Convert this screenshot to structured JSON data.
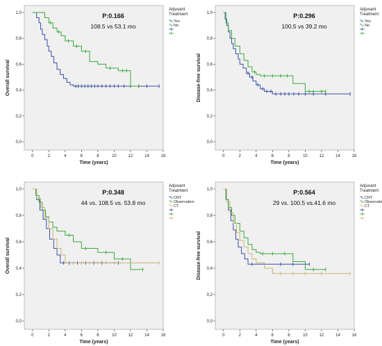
{
  "colors": {
    "blue": "#3a4fa8",
    "green": "#3aa83a",
    "tan": "#c8b47a",
    "background": "#f0f0f0"
  },
  "chart_data": [
    {
      "type": "line",
      "xlabel": "Time (years)",
      "ylabel": "Overall survival",
      "pvalue": "P:0.166",
      "subtitle": "108.5 vs 53.1 mo",
      "legend_title": [
        "Adjuvant",
        "Treatment"
      ],
      "legend_placement": "right",
      "xlim": [
        -1,
        16
      ],
      "ylim": [
        0,
        1.0
      ],
      "xticks": [
        "0",
        "2",
        "4",
        "6",
        "8",
        "10",
        "12",
        "14",
        "16"
      ],
      "yticks": [
        "0,0",
        "0,2",
        "0,4",
        "0,6",
        "0,8",
        "1,0"
      ],
      "series": [
        {
          "name": "Yes",
          "color": "blue",
          "x": [
            0,
            0.5,
            0.8,
            1.0,
            1.2,
            1.5,
            1.8,
            2.0,
            2.3,
            2.6,
            3.0,
            3.4,
            3.8,
            4.2,
            4.6,
            5.0,
            15.5
          ],
          "y": [
            1.0,
            0.96,
            0.92,
            0.87,
            0.83,
            0.79,
            0.74,
            0.7,
            0.66,
            0.61,
            0.56,
            0.52,
            0.49,
            0.46,
            0.44,
            0.43,
            0.43
          ],
          "censors": [
            5.3,
            5.6,
            6.0,
            6.4,
            6.8,
            7.2,
            7.6,
            8.0,
            8.5,
            9.0,
            9.5,
            10.0,
            10.5,
            11.2,
            12.0,
            13.0,
            14.0,
            15.5
          ]
        },
        {
          "name": "No",
          "color": "green",
          "x": [
            0,
            1.5,
            2.0,
            2.5,
            3.0,
            3.5,
            4.0,
            5.0,
            6.0,
            7.0,
            8.0,
            9.0,
            10.5,
            12.0,
            13.0
          ],
          "y": [
            1.0,
            0.96,
            0.92,
            0.88,
            0.85,
            0.82,
            0.78,
            0.74,
            0.7,
            0.62,
            0.6,
            0.57,
            0.55,
            0.43,
            0.43
          ],
          "censors": [
            2.2,
            3.2,
            4.4,
            5.4,
            6.5,
            9.5,
            11.0,
            11.5,
            13.0
          ]
        }
      ]
    },
    {
      "type": "line",
      "xlabel": "Time (years)",
      "ylabel": "Disease-free survival",
      "pvalue": "P:0.296",
      "subtitle": "100.5 vs 39.2 mo",
      "legend_title": [
        "Adjuvant",
        "Treatment"
      ],
      "legend_placement": "right",
      "xlim": [
        -1,
        16
      ],
      "ylim": [
        0,
        1.0
      ],
      "xticks": [
        "0",
        "2",
        "4",
        "6",
        "8",
        "10",
        "12",
        "14",
        "16"
      ],
      "yticks": [
        "0,0",
        "0,2",
        "0,4",
        "0,6",
        "0,8",
        "1,0"
      ],
      "series": [
        {
          "name": "Yes",
          "color": "blue",
          "x": [
            0,
            0.2,
            0.4,
            0.6,
            0.8,
            1.0,
            1.2,
            1.5,
            1.8,
            2.0,
            2.4,
            2.8,
            3.2,
            3.6,
            4.0,
            4.5,
            5.0,
            6.0,
            15.5
          ],
          "y": [
            1.0,
            0.95,
            0.9,
            0.85,
            0.8,
            0.76,
            0.72,
            0.68,
            0.64,
            0.6,
            0.57,
            0.53,
            0.5,
            0.47,
            0.44,
            0.41,
            0.39,
            0.37,
            0.37
          ],
          "censors": [
            3.0,
            3.5,
            4.2,
            4.8,
            5.3,
            5.8,
            6.4,
            7.0,
            7.5,
            8.0,
            8.6,
            9.2,
            10.0,
            11.0,
            12.5,
            15.5
          ]
        },
        {
          "name": "No",
          "color": "green",
          "x": [
            0,
            0.3,
            0.6,
            1.0,
            1.4,
            2.0,
            2.5,
            3.0,
            3.5,
            4.0,
            4.5,
            8.5,
            10.0,
            12.5
          ],
          "y": [
            1.0,
            0.92,
            0.86,
            0.8,
            0.74,
            0.68,
            0.63,
            0.58,
            0.54,
            0.52,
            0.51,
            0.45,
            0.39,
            0.39
          ],
          "censors": [
            3.8,
            5.0,
            6.0,
            7.0,
            7.8,
            10.5,
            11.0,
            12.0,
            12.5
          ]
        }
      ]
    },
    {
      "type": "line",
      "xlabel": "Time (years)",
      "ylabel": "Overall survival",
      "pvalue": "P:0.348",
      "subtitle": "44 vs. 108.5 vs. 53.8 mo",
      "legend_title": [
        "Adjuvant",
        "Treatment"
      ],
      "legend_placement": "right",
      "xlim": [
        -1,
        16
      ],
      "ylim": [
        0,
        1.0
      ],
      "xticks": [
        "0",
        "2",
        "4",
        "6",
        "8",
        "10",
        "12",
        "14",
        "16"
      ],
      "yticks": [
        "0,0",
        "0,2",
        "0,4",
        "0,6",
        "0,8",
        "1,0"
      ],
      "series": [
        {
          "name": "CRT",
          "color": "blue",
          "x": [
            0,
            0.5,
            0.9,
            1.3,
            1.7,
            2.1,
            2.6,
            3.0,
            3.4,
            10.5
          ],
          "y": [
            1.0,
            0.92,
            0.84,
            0.77,
            0.7,
            0.62,
            0.55,
            0.5,
            0.44,
            0.44
          ],
          "censors": [
            3.8,
            4.5,
            5.5,
            6.5,
            7.5,
            8.5,
            10.5
          ]
        },
        {
          "name": "Observation",
          "color": "green",
          "x": [
            0,
            0.4,
            0.8,
            1.2,
            1.6,
            2.0,
            2.5,
            3.0,
            4.0,
            5.0,
            6.0,
            8.0,
            10.0,
            12.0,
            13.5
          ],
          "y": [
            1.0,
            0.95,
            0.9,
            0.84,
            0.79,
            0.75,
            0.71,
            0.68,
            0.65,
            0.6,
            0.55,
            0.52,
            0.47,
            0.39,
            0.39
          ],
          "censors": [
            4.5,
            6.5,
            9.0,
            11.0,
            13.5
          ]
        },
        {
          "name": "CT",
          "color": "tan",
          "x": [
            0,
            0.5,
            1.0,
            1.5,
            2.0,
            2.5,
            3.0,
            3.5,
            4.0,
            15.5
          ],
          "y": [
            1.0,
            0.93,
            0.86,
            0.78,
            0.7,
            0.62,
            0.55,
            0.5,
            0.44,
            0.44
          ],
          "censors": [
            5.0,
            6.0,
            7.0,
            8.0,
            9.0,
            10.0,
            15.5
          ]
        }
      ]
    },
    {
      "type": "line",
      "xlabel": "Time (years)",
      "ylabel": "Disease-free survival",
      "pvalue": "P:0.564",
      "subtitle": "29 vs. 100.5 vs.41.6 mo",
      "legend_title": [
        "Adjuvant",
        "Treatment"
      ],
      "legend_placement": "right",
      "xlim": [
        -1,
        16
      ],
      "ylim": [
        0,
        1.0
      ],
      "xticks": [
        "0",
        "2",
        "4",
        "6",
        "8",
        "10",
        "12",
        "14",
        "16"
      ],
      "yticks": [
        "0,0",
        "0,2",
        "0,4",
        "0,6",
        "0,8",
        "1,0"
      ],
      "series": [
        {
          "name": "CRT",
          "color": "blue",
          "x": [
            0,
            0.3,
            0.6,
            0.9,
            1.2,
            1.5,
            1.8,
            2.2,
            2.6,
            3.0,
            10.5
          ],
          "y": [
            1.0,
            0.92,
            0.84,
            0.76,
            0.69,
            0.62,
            0.56,
            0.51,
            0.47,
            0.43,
            0.43
          ],
          "censors": [
            3.5,
            5.0,
            7.0,
            8.5,
            10.5
          ]
        },
        {
          "name": "Observation",
          "color": "green",
          "x": [
            0,
            0.3,
            0.6,
            1.0,
            1.4,
            2.0,
            2.5,
            3.0,
            3.5,
            4.0,
            4.5,
            8.5,
            10.0,
            12.5
          ],
          "y": [
            1.0,
            0.92,
            0.86,
            0.8,
            0.74,
            0.68,
            0.63,
            0.58,
            0.54,
            0.52,
            0.51,
            0.45,
            0.39,
            0.39
          ],
          "censors": [
            4.8,
            6.0,
            7.5,
            11.0,
            12.5
          ]
        },
        {
          "name": "CT",
          "color": "tan",
          "x": [
            0,
            0.4,
            0.8,
            1.2,
            1.6,
            2.0,
            2.5,
            3.0,
            3.5,
            4.0,
            5.0,
            6.0,
            15.5
          ],
          "y": [
            1.0,
            0.9,
            0.82,
            0.74,
            0.67,
            0.61,
            0.56,
            0.51,
            0.47,
            0.44,
            0.4,
            0.36,
            0.36
          ],
          "censors": [
            7.0,
            8.5,
            10.0,
            12.0,
            15.5
          ]
        }
      ]
    }
  ]
}
